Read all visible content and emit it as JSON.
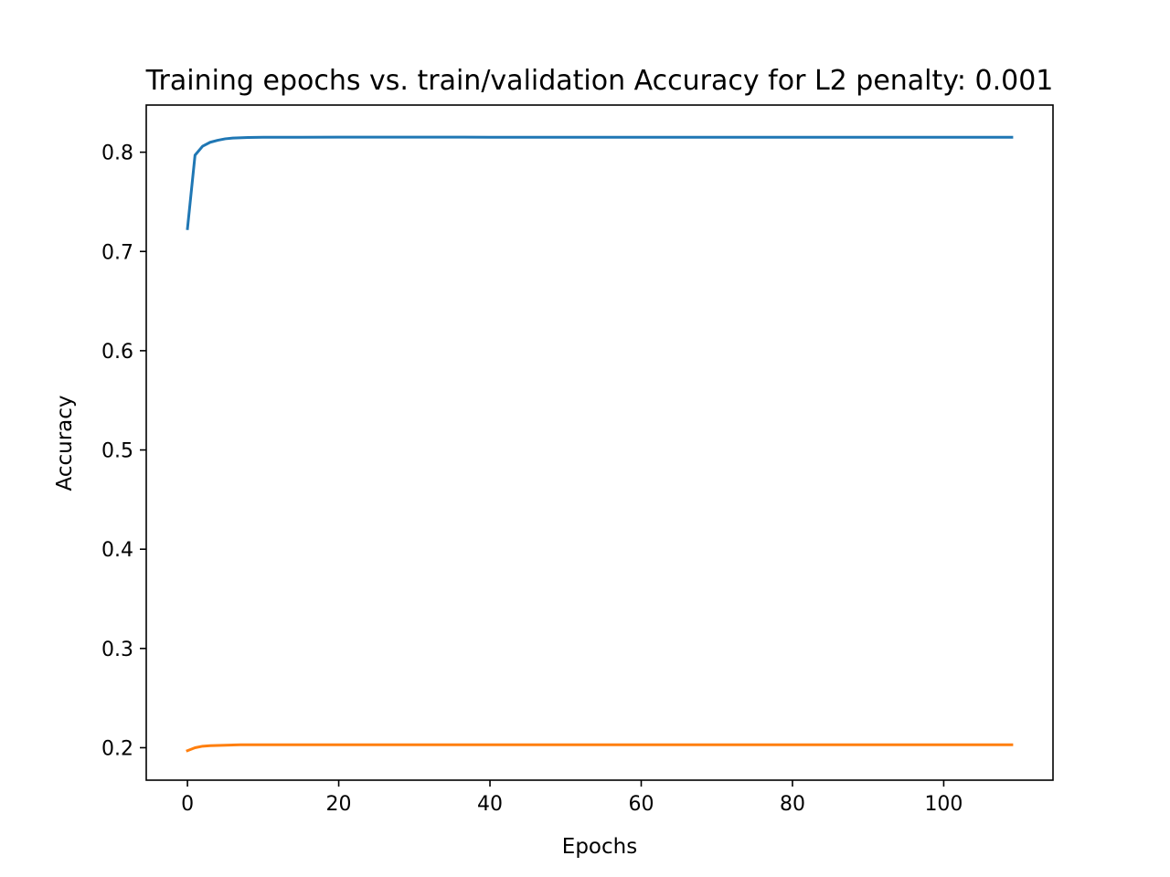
{
  "chart_data": {
    "type": "line",
    "title": "Training epochs vs. train/validation Accuracy for L2 penalty: 0.001",
    "xlabel": "Epochs",
    "ylabel": "Accuracy",
    "xlim": [
      -5.45,
      114.45
    ],
    "ylim": [
      0.1673,
      0.8475
    ],
    "xticks": [
      0,
      20,
      40,
      60,
      80,
      100
    ],
    "xtick_labels": [
      "0",
      "20",
      "40",
      "60",
      "80",
      "100"
    ],
    "yticks": [
      0.2,
      0.3,
      0.4,
      0.5,
      0.6,
      0.7,
      0.8
    ],
    "ytick_labels": [
      "0.2",
      "0.3",
      "0.4",
      "0.5",
      "0.6",
      "0.7",
      "0.8"
    ],
    "grid": false,
    "series": [
      {
        "color": "#1f77b4",
        "x": [
          0,
          1,
          2,
          3,
          4,
          5,
          6,
          8,
          10,
          15,
          20,
          30,
          40,
          50,
          60,
          70,
          80,
          90,
          100,
          109
        ],
        "values": [
          0.723,
          0.797,
          0.806,
          0.81,
          0.812,
          0.8135,
          0.8142,
          0.8148,
          0.815,
          0.815,
          0.8152,
          0.8152,
          0.8151,
          0.815,
          0.815,
          0.815,
          0.815,
          0.815,
          0.815,
          0.815
        ]
      },
      {
        "color": "#ff7f0e",
        "x": [
          0,
          1,
          2,
          3,
          5,
          7,
          10,
          20,
          30,
          40,
          50,
          60,
          70,
          80,
          90,
          100,
          109
        ],
        "values": [
          0.197,
          0.2,
          0.2015,
          0.202,
          0.2025,
          0.203,
          0.203,
          0.203,
          0.203,
          0.203,
          0.203,
          0.203,
          0.203,
          0.203,
          0.203,
          0.203,
          0.203
        ]
      }
    ]
  }
}
